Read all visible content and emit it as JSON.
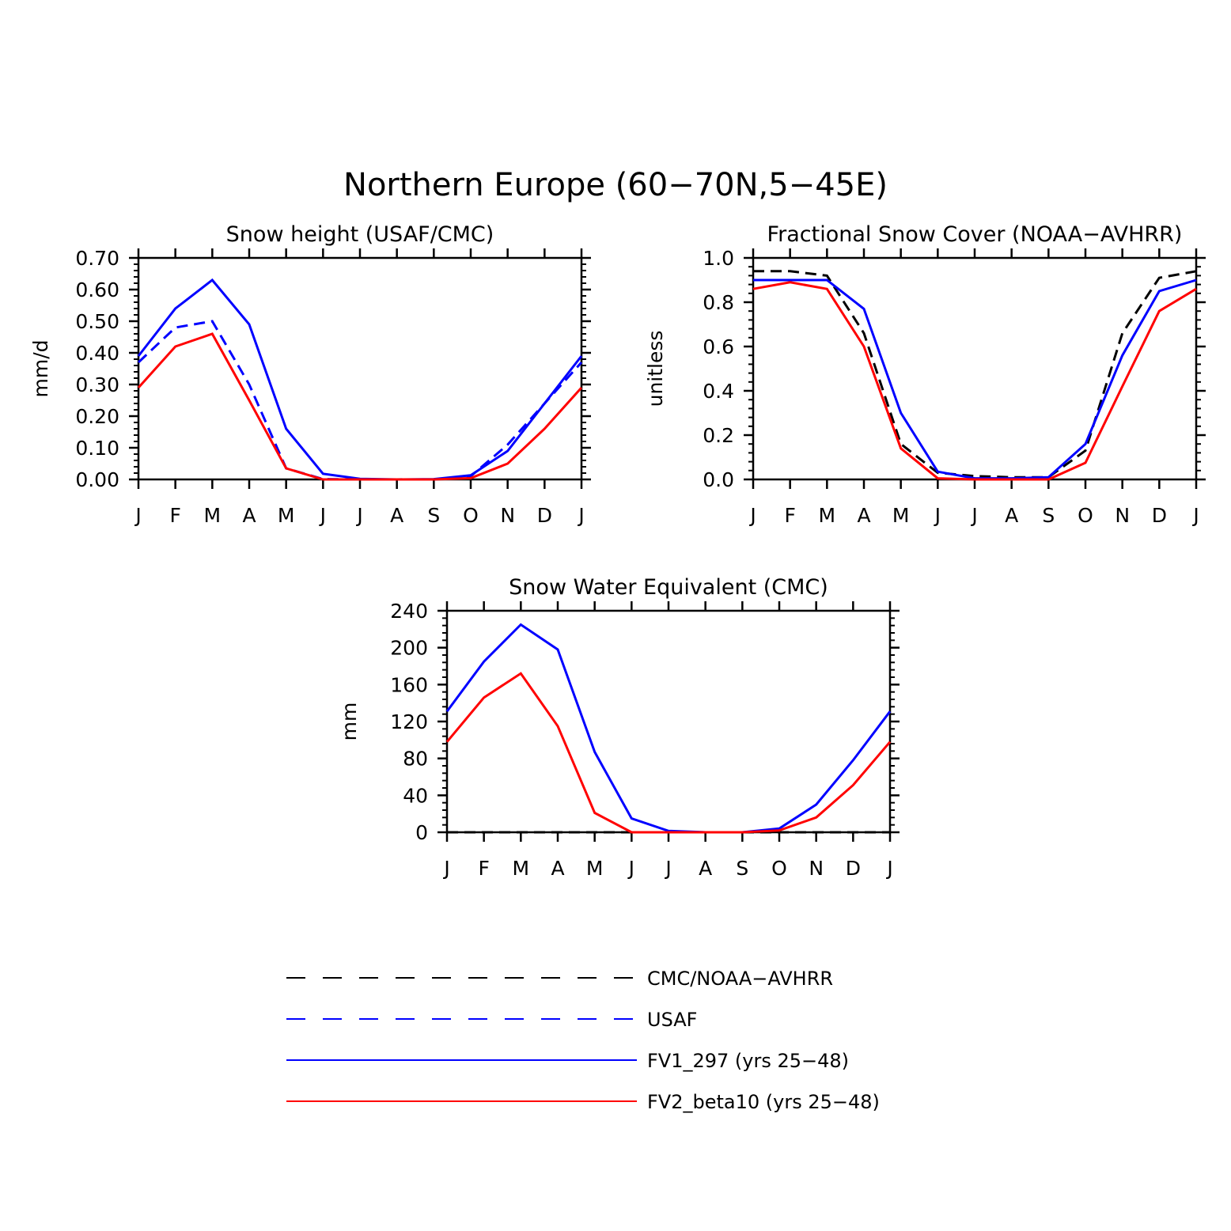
{
  "figure_title": "Northern Europe (60−70N,5−45E)",
  "colors": {
    "CMC/NOAA-AVHRR": "#000000",
    "USAF": "#0000ff",
    "FV1_297": "#0000ff",
    "FV2_beta10": "#ff0000"
  },
  "legend": [
    {
      "label": "CMC/NOAA−AVHRR",
      "color": "#000000",
      "style": "dashed"
    },
    {
      "label": "USAF",
      "color": "#0000ff",
      "style": "dashed"
    },
    {
      "label": "FV1_297 (yrs 25−48)",
      "color": "#0000ff",
      "style": "solid"
    },
    {
      "label": "FV2_beta10 (yrs 25−48)",
      "color": "#ff0000",
      "style": "solid"
    }
  ],
  "chart_data": [
    {
      "type": "line",
      "title": "Snow height (USAF/CMC)",
      "xlabel": "",
      "ylabel": "mm/d",
      "categories": [
        "J",
        "F",
        "M",
        "A",
        "M",
        "J",
        "J",
        "A",
        "S",
        "O",
        "N",
        "D",
        "J"
      ],
      "ylim": [
        0,
        0.7
      ],
      "yticks": [
        "0.00",
        "0.10",
        "0.20",
        "0.30",
        "0.40",
        "0.50",
        "0.60",
        "0.70"
      ],
      "series": [
        {
          "name": "USAF",
          "color": "#0000ff",
          "style": "dashed",
          "values": [
            0.37,
            0.48,
            0.5,
            0.3,
            0.035,
            0.001,
            0.0,
            0.0,
            0.0,
            0.01,
            0.11,
            0.24,
            0.37
          ]
        },
        {
          "name": "FV1_297",
          "color": "#0000ff",
          "style": "solid",
          "values": [
            0.39,
            0.54,
            0.63,
            0.49,
            0.16,
            0.018,
            0.002,
            0.0,
            0.001,
            0.013,
            0.09,
            0.24,
            0.39
          ]
        },
        {
          "name": "FV2_beta10",
          "color": "#ff0000",
          "style": "solid",
          "values": [
            0.29,
            0.42,
            0.46,
            0.25,
            0.035,
            0.0,
            0.0,
            0.0,
            0.0,
            0.004,
            0.05,
            0.16,
            0.29
          ]
        }
      ]
    },
    {
      "type": "line",
      "title": "Fractional Snow Cover (NOAA−AVHRR)",
      "xlabel": "",
      "ylabel": "unitless",
      "categories": [
        "J",
        "F",
        "M",
        "A",
        "M",
        "J",
        "J",
        "A",
        "S",
        "O",
        "N",
        "D",
        "J"
      ],
      "ylim": [
        0,
        1.0
      ],
      "yticks": [
        "0.0",
        "0.2",
        "0.4",
        "0.6",
        "0.8",
        "1.0"
      ],
      "series": [
        {
          "name": "CMC/NOAA-AVHRR",
          "color": "#000000",
          "style": "dashed",
          "values": [
            0.94,
            0.94,
            0.92,
            0.66,
            0.16,
            0.03,
            0.015,
            0.01,
            0.01,
            0.13,
            0.66,
            0.91,
            0.94
          ]
        },
        {
          "name": "FV1_297",
          "color": "#0000ff",
          "style": "solid",
          "values": [
            0.9,
            0.9,
            0.9,
            0.77,
            0.3,
            0.035,
            0.005,
            0.005,
            0.01,
            0.16,
            0.56,
            0.85,
            0.9
          ]
        },
        {
          "name": "FV2_beta10",
          "color": "#ff0000",
          "style": "solid",
          "values": [
            0.86,
            0.89,
            0.86,
            0.6,
            0.14,
            0.005,
            0.0,
            0.0,
            0.0,
            0.075,
            0.42,
            0.76,
            0.86
          ]
        }
      ]
    },
    {
      "type": "line",
      "title": "Snow Water Equivalent (CMC)",
      "xlabel": "",
      "ylabel": "mm",
      "categories": [
        "J",
        "F",
        "M",
        "A",
        "M",
        "J",
        "J",
        "A",
        "S",
        "O",
        "N",
        "D",
        "J"
      ],
      "ylim": [
        0,
        240
      ],
      "yticks": [
        "0",
        "40",
        "80",
        "120",
        "160",
        "200",
        "240"
      ],
      "series": [
        {
          "name": "CMC/NOAA-AVHRR",
          "color": "#000000",
          "style": "dashed",
          "values": [
            0,
            0,
            0,
            0,
            0,
            0,
            0,
            0,
            0,
            0,
            0,
            0,
            0
          ]
        },
        {
          "name": "FV1_297",
          "color": "#0000ff",
          "style": "solid",
          "values": [
            131,
            185,
            225,
            198,
            87,
            15,
            1.5,
            0,
            0,
            4,
            30,
            78,
            131
          ]
        },
        {
          "name": "FV2_beta10",
          "color": "#ff0000",
          "style": "solid",
          "values": [
            98,
            146,
            172,
            115,
            21,
            0,
            0,
            0,
            0,
            2,
            16,
            51,
            98
          ]
        }
      ]
    }
  ]
}
